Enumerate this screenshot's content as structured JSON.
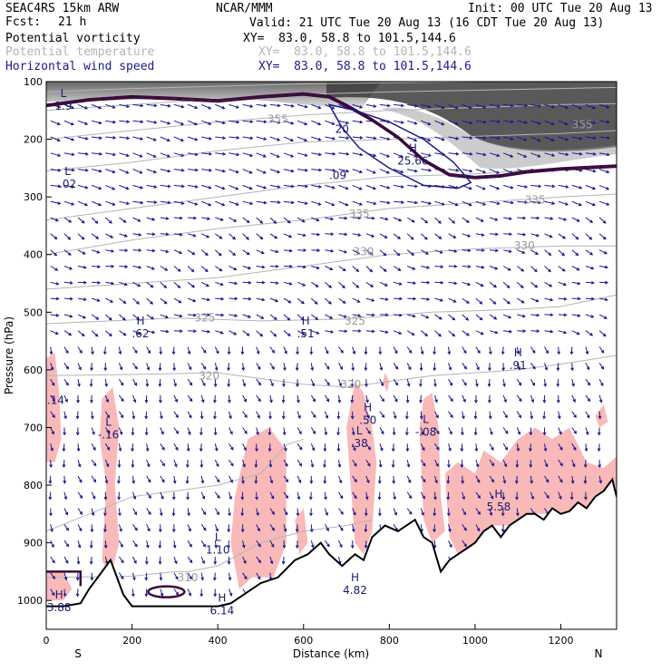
{
  "header": {
    "model": "SEAC4RS 15km ARW",
    "forecast_label": "Fcst:",
    "forecast_value": "21 h",
    "center": "NCAR/MMM",
    "init": "Init: 00 UTC Tue 20 Aug 13",
    "valid": "Valid: 21 UTC Tue 20 Aug 13 (16 CDT Tue 20 Aug 13)",
    "fields": [
      {
        "name": "Potential vorticity",
        "xy": "XY=  83.0, 58.8 to 101.5,144.6",
        "color": "#000000"
      },
      {
        "name": "Potential temperature",
        "xy": "XY=  83.0, 58.8 to 101.5,144.6",
        "color": "#b4b4b4"
      },
      {
        "name": "Horizontal wind speed",
        "xy": "XY=  83.0, 58.8 to 101.5,144.6",
        "color": "#1a1a8c"
      }
    ]
  },
  "colors": {
    "pv_contour": "#3a0a3a",
    "wind_contour": "#1a1a8c",
    "theta_contour": "#b4b4b4",
    "vectors": "#1a1a8c",
    "shading": "#f9b9b9",
    "terrain": "#000000"
  },
  "chart_data": {
    "type": "cross-section",
    "xlabel": "Distance (km)",
    "ylabel": "Pressure (hPa)",
    "xlim": [
      0,
      1330
    ],
    "ylim": [
      1050,
      100
    ],
    "x_ticks": [
      0,
      200,
      400,
      600,
      800,
      1000,
      1200
    ],
    "y_ticks": [
      100,
      200,
      300,
      400,
      500,
      600,
      700,
      800,
      900,
      1000
    ],
    "endpoints": {
      "left": "S",
      "right": "N"
    },
    "theta_contours": [
      {
        "label": "310",
        "x": 330,
        "p": 960
      },
      {
        "label": "320",
        "x": 380,
        "p": 610
      },
      {
        "label": "320",
        "x": 710,
        "p": 625
      },
      {
        "label": "325",
        "x": 370,
        "p": 510
      },
      {
        "label": "325",
        "x": 720,
        "p": 515
      },
      {
        "label": "330",
        "x": 740,
        "p": 395
      },
      {
        "label": "330",
        "x": 1115,
        "p": 385
      },
      {
        "label": "335",
        "x": 730,
        "p": 330
      },
      {
        "label": "335",
        "x": 1140,
        "p": 305
      },
      {
        "label": "355",
        "x": 1250,
        "p": 175
      },
      {
        "label": "355",
        "x": 540,
        "p": 165
      }
    ],
    "extrema": [
      {
        "type": "L",
        "value": "1.9",
        "x": 40,
        "p": 130
      },
      {
        "type": "L",
        "value": ".02",
        "x": 50,
        "p": 265
      },
      {
        "type": "",
        "value": "20",
        "x": 690,
        "p": 170
      },
      {
        "type": "H",
        "value": "25.66",
        "x": 855,
        "p": 225
      },
      {
        "type": "",
        "value": ".09",
        "x": 680,
        "p": 250
      },
      {
        "type": "H",
        "value": ".62",
        "x": 220,
        "p": 525
      },
      {
        "type": "H",
        "value": ".51",
        "x": 605,
        "p": 525
      },
      {
        "type": "H",
        "value": ".91",
        "x": 1100,
        "p": 580
      },
      {
        "type": "",
        "value": ".14",
        "x": 22,
        "p": 640
      },
      {
        "type": "L",
        "value": "-.16",
        "x": 145,
        "p": 700
      },
      {
        "type": "H",
        "value": ".50",
        "x": 750,
        "p": 675
      },
      {
        "type": "L",
        "value": ".38",
        "x": 730,
        "p": 715
      },
      {
        "type": "L",
        "value": "-.08",
        "x": 885,
        "p": 695
      },
      {
        "type": "H",
        "value": "5.58",
        "x": 1055,
        "p": 825
      },
      {
        "type": "L",
        "value": "1.10",
        "x": 400,
        "p": 900
      },
      {
        "type": "H",
        "value": "4.82",
        "x": 720,
        "p": 970
      },
      {
        "type": "H",
        "value": "3.88",
        "x": 30,
        "p": 1000
      },
      {
        "type": "H",
        "value": "6.14",
        "x": 410,
        "p": 1005
      }
    ],
    "terrain_profile": {
      "x": [
        0,
        40,
        80,
        100,
        120,
        150,
        180,
        200,
        300,
        400,
        430,
        460,
        500,
        540,
        580,
        610,
        640,
        660,
        690,
        720,
        740,
        760,
        790,
        820,
        860,
        880,
        900,
        920,
        940,
        960,
        980,
        1000,
        1020,
        1040,
        1060,
        1080,
        1100,
        1120,
        1140,
        1160,
        1180,
        1200,
        1220,
        1240,
        1260,
        1280,
        1300,
        1320,
        1330
      ],
      "p": [
        1010,
        1010,
        1005,
        980,
        960,
        930,
        990,
        1010,
        1010,
        1010,
        1005,
        990,
        970,
        960,
        930,
        920,
        900,
        920,
        940,
        920,
        930,
        890,
        870,
        880,
        860,
        890,
        900,
        950,
        930,
        920,
        910,
        900,
        880,
        870,
        890,
        870,
        860,
        850,
        850,
        860,
        840,
        850,
        845,
        830,
        840,
        820,
        810,
        790,
        820
      ]
    },
    "wind_speed_contours": [
      {
        "label": "20",
        "note": "closed contour around 25.66 maximum"
      }
    ]
  }
}
